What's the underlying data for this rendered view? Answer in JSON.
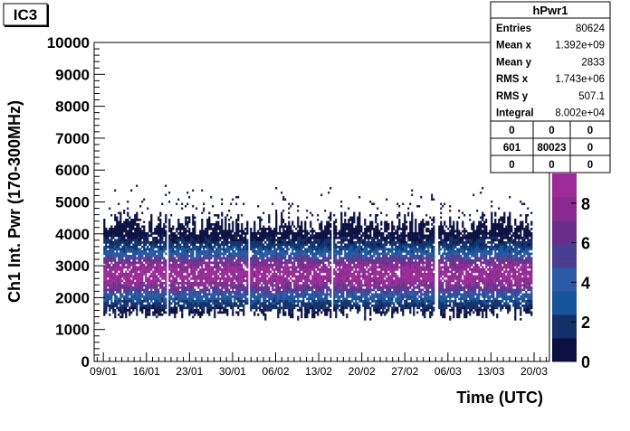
{
  "tag": "IC3",
  "stats": {
    "title": "hPwr1",
    "rows": [
      {
        "label": "Entries",
        "value": "80624"
      },
      {
        "label": "Mean x",
        "value": "1.392e+09"
      },
      {
        "label": "Mean y",
        "value": "2833"
      },
      {
        "label": "RMS x",
        "value": "1.743e+06"
      },
      {
        "label": "RMS y",
        "value": "507.1"
      },
      {
        "label": "Integral",
        "value": "8.002e+04"
      }
    ],
    "grid": [
      [
        "0",
        "0",
        "0"
      ],
      [
        "601",
        "80023",
        "0"
      ],
      [
        "0",
        "0",
        "0"
      ]
    ]
  },
  "chart_data": {
    "type": "heatmap",
    "title": "",
    "xlabel": "Time (UTC)",
    "ylabel": "Ch1 Int. Pwr (170-300MHz)",
    "x_tick_labels": [
      "09/01",
      "16/01",
      "23/01",
      "30/01",
      "06/02",
      "13/02",
      "20/02",
      "27/02",
      "06/03",
      "13/03",
      "20/03"
    ],
    "x_range_days": [
      -1.5,
      72.5
    ],
    "ylim": [
      0,
      10000
    ],
    "y_ticks": [
      0,
      1000,
      2000,
      3000,
      4000,
      5000,
      6000,
      7000,
      8000,
      9000,
      10000
    ],
    "z_ticks": [
      0,
      2,
      4,
      6,
      8
    ],
    "z_range": [
      0,
      9.5
    ],
    "distribution": {
      "y_center": 2750,
      "y_core_sigma": 480,
      "y_outer_lower": 1500,
      "y_outer_upper": 4300,
      "x_start_day": 0,
      "x_end_day": 69.5
    },
    "gaps_days": [
      10.3,
      23.6,
      37.0,
      54.0
    ],
    "colors": [
      "#0b1040",
      "#12306a",
      "#16549a",
      "#2a5aa5",
      "#4a3d92",
      "#6a2e8a",
      "#8a2a8e",
      "#9c2b99"
    ]
  }
}
